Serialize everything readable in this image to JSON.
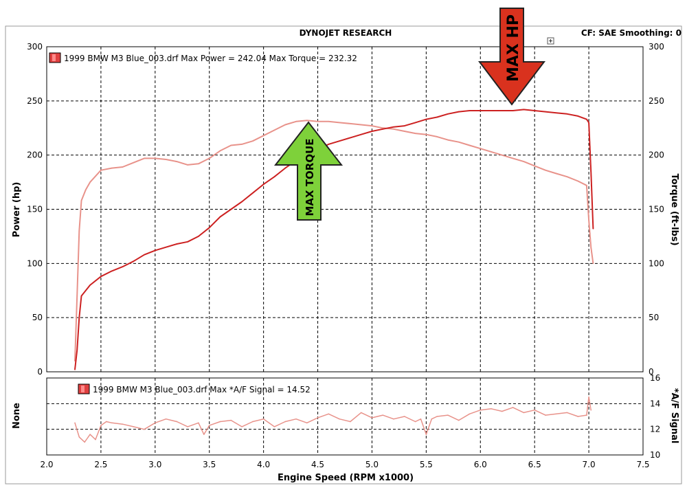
{
  "header": {
    "title": "DYNOJET RESEARCH",
    "cf_label": "CF: SAE  Smoothing: 0"
  },
  "colors": {
    "power": "#cc2020",
    "torque": "#e8928a",
    "af": "#e8928a",
    "arrow_hp": "#d9321e",
    "arrow_torque": "#7ed13a"
  },
  "chart_data": [
    {
      "type": "line",
      "legend": "1999 BMW M3 Blue_003.drf Max Power = 242.04 Max Torque = 232.32",
      "xlabel": "Engine Speed (RPM x1000)",
      "ylabel_left": "Power (hp)",
      "ylabel_right": "Torque (ft-lbs)",
      "xlim": [
        2.0,
        7.5
      ],
      "ylim": [
        0,
        300
      ],
      "x_ticks": [
        "2.0",
        "2.5",
        "3.0",
        "3.5",
        "4.0",
        "4.5",
        "5.0",
        "5.5",
        "6.0",
        "6.5",
        "7.0",
        "7.5"
      ],
      "y_ticks_left": [
        "0",
        "50",
        "100",
        "150",
        "200",
        "250",
        "300"
      ],
      "y_ticks_right": [
        "0",
        "50",
        "100",
        "150",
        "200",
        "250",
        "300"
      ],
      "grid": true,
      "annotations": [
        "MAX HP",
        "MAX TORQUE"
      ],
      "series": [
        {
          "key": "power",
          "x": [
            2.26,
            2.28,
            2.3,
            2.32,
            2.36,
            2.4,
            2.5,
            2.6,
            2.7,
            2.8,
            2.9,
            3.0,
            3.1,
            3.2,
            3.3,
            3.4,
            3.5,
            3.6,
            3.7,
            3.8,
            3.9,
            4.0,
            4.1,
            4.2,
            4.3,
            4.4,
            4.5,
            4.6,
            4.7,
            4.8,
            4.9,
            5.0,
            5.1,
            5.2,
            5.3,
            5.4,
            5.5,
            5.6,
            5.7,
            5.8,
            5.9,
            6.0,
            6.1,
            6.2,
            6.3,
            6.4,
            6.5,
            6.6,
            6.7,
            6.8,
            6.9,
            6.98,
            7.0,
            7.02,
            7.04
          ],
          "y": [
            2,
            20,
            50,
            70,
            75,
            80,
            88,
            93,
            97,
            102,
            108,
            112,
            115,
            118,
            120,
            125,
            133,
            143,
            150,
            157,
            165,
            173,
            180,
            188,
            195,
            201,
            205,
            210,
            213,
            216,
            219,
            222,
            224,
            226,
            227,
            230,
            233,
            235,
            238,
            240,
            241,
            241,
            241,
            241,
            241,
            242,
            241,
            240,
            239,
            238,
            236,
            233,
            230,
            185,
            132
          ]
        },
        {
          "key": "torque",
          "x": [
            2.26,
            2.28,
            2.3,
            2.32,
            2.36,
            2.4,
            2.5,
            2.6,
            2.7,
            2.8,
            2.9,
            3.0,
            3.1,
            3.2,
            3.3,
            3.4,
            3.5,
            3.6,
            3.7,
            3.8,
            3.9,
            4.0,
            4.1,
            4.2,
            4.3,
            4.4,
            4.5,
            4.6,
            4.7,
            4.8,
            4.9,
            5.0,
            5.1,
            5.2,
            5.3,
            5.4,
            5.5,
            5.6,
            5.7,
            5.8,
            5.9,
            6.0,
            6.1,
            6.2,
            6.3,
            6.4,
            6.5,
            6.6,
            6.7,
            6.8,
            6.9,
            6.98,
            7.0,
            7.02,
            7.04
          ],
          "y": [
            10,
            70,
            130,
            158,
            168,
            175,
            186,
            188,
            189,
            193,
            197,
            197,
            196,
            194,
            191,
            192,
            197,
            204,
            209,
            210,
            213,
            218,
            223,
            228,
            231,
            232,
            231,
            231,
            230,
            229,
            228,
            227,
            225,
            224,
            222,
            220,
            219,
            217,
            214,
            212,
            209,
            206,
            203,
            200,
            197,
            194,
            190,
            186,
            183,
            180,
            176,
            172,
            140,
            115,
            100
          ]
        }
      ]
    },
    {
      "type": "line",
      "legend": "1999 BMW M3 Blue_003.drf Max *A/F Signal = 14.52",
      "ylabel_left": "None",
      "ylabel_right": "*A/F Signal",
      "xlim": [
        2.0,
        7.5
      ],
      "ylim": [
        10,
        16
      ],
      "y_ticks_right": [
        "10",
        "12",
        "14",
        "16"
      ],
      "grid": true,
      "series": [
        {
          "key": "af",
          "x": [
            2.26,
            2.3,
            2.35,
            2.4,
            2.45,
            2.5,
            2.55,
            2.6,
            2.7,
            2.8,
            2.9,
            3.0,
            3.1,
            3.2,
            3.3,
            3.4,
            3.45,
            3.5,
            3.6,
            3.7,
            3.8,
            3.9,
            4.0,
            4.1,
            4.2,
            4.3,
            4.4,
            4.5,
            4.6,
            4.7,
            4.8,
            4.9,
            5.0,
            5.1,
            5.2,
            5.3,
            5.4,
            5.45,
            5.5,
            5.55,
            5.6,
            5.7,
            5.8,
            5.9,
            6.0,
            6.1,
            6.2,
            6.3,
            6.4,
            6.5,
            6.6,
            6.7,
            6.8,
            6.9,
            6.98,
            7.0,
            7.02
          ],
          "y": [
            12.5,
            11.4,
            11.0,
            11.6,
            11.2,
            12.3,
            12.6,
            12.5,
            12.4,
            12.2,
            12.0,
            12.5,
            12.8,
            12.6,
            12.2,
            12.5,
            11.6,
            12.3,
            12.6,
            12.7,
            12.2,
            12.6,
            12.8,
            12.2,
            12.6,
            12.8,
            12.5,
            12.9,
            13.2,
            12.8,
            12.6,
            13.3,
            12.9,
            13.1,
            12.8,
            13.0,
            12.6,
            12.8,
            11.6,
            12.8,
            13.0,
            13.1,
            12.7,
            13.2,
            13.5,
            13.6,
            13.4,
            13.7,
            13.3,
            13.5,
            13.1,
            13.2,
            13.3,
            13.0,
            13.1,
            14.52,
            13.5
          ]
        }
      ]
    }
  ]
}
